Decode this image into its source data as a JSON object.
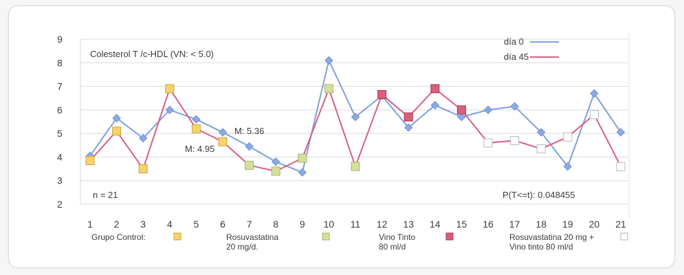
{
  "chart_data": {
    "type": "line",
    "title": "Colesterol T /c-HDL (VN: < 5.0)",
    "xlabel": "",
    "ylabel": "",
    "ylim": [
      2,
      9
    ],
    "yticks": [
      "2",
      "3",
      "4",
      "5",
      "6",
      "7",
      "8",
      "9"
    ],
    "categories": [
      "1",
      "2",
      "3",
      "4",
      "5",
      "6",
      "7",
      "8",
      "9",
      "10",
      "11",
      "12",
      "13",
      "14",
      "15",
      "16",
      "17",
      "18",
      "19",
      "20",
      "21"
    ],
    "series": [
      {
        "name": "día 0",
        "color": "#7f9fe0",
        "marker": "diamond",
        "values": [
          4.05,
          5.65,
          4.8,
          6.0,
          5.6,
          5.05,
          4.45,
          3.8,
          3.35,
          8.1,
          5.7,
          6.6,
          5.25,
          6.2,
          5.7,
          6.0,
          6.15,
          5.05,
          3.6,
          6.7,
          5.05
        ]
      },
      {
        "name": "día 45",
        "color": "#d6607e",
        "marker": "square",
        "values": [
          3.85,
          5.1,
          3.5,
          6.9,
          5.2,
          4.65,
          3.65,
          3.4,
          3.95,
          6.9,
          3.6,
          6.65,
          5.7,
          6.9,
          6.0,
          4.6,
          4.7,
          4.35,
          4.85,
          5.8,
          3.6
        ]
      }
    ],
    "group_assignment": [
      0,
      0,
      0,
      0,
      0,
      0,
      1,
      1,
      1,
      1,
      1,
      2,
      2,
      2,
      2,
      3,
      3,
      3,
      3,
      3,
      3
    ],
    "groups": [
      {
        "label": "Grupo Control:",
        "label2": "",
        "color": "#f6d36b"
      },
      {
        "label": "Rosuvastatina",
        "label2": "20 mg/d.",
        "color": "#d5df9c"
      },
      {
        "label": "Vino Tinto",
        "label2": "80 ml/d",
        "color": "#d95f7d"
      },
      {
        "label": "Rosuvastatina 20 mg +",
        "label2": "Vino tinto 80 ml/d",
        "color": "#ffffff"
      }
    ],
    "annotations": {
      "mean0": "M: 5.36",
      "mean45": "M: 4.95",
      "n": "n = 21",
      "p": "P(T<=t): 0.048455"
    },
    "grid": true,
    "legend_position": "top-right"
  }
}
